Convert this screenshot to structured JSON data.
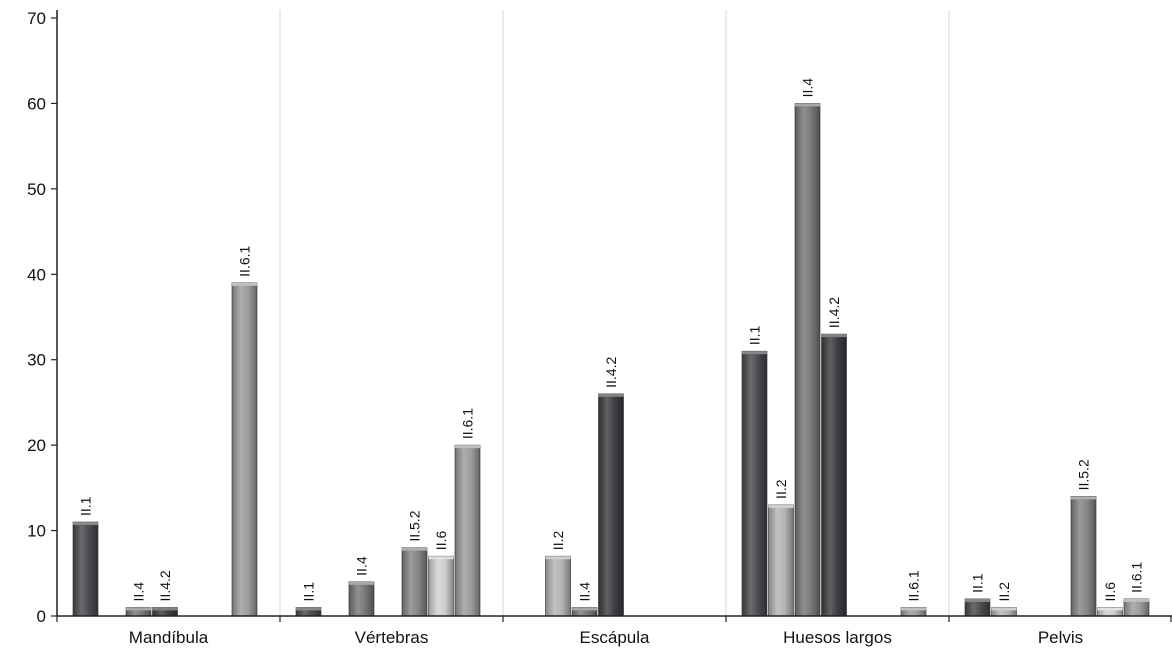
{
  "chart_data": {
    "type": "bar",
    "title": "",
    "xlabel": "",
    "ylabel": "",
    "ylim": [
      0,
      70
    ],
    "yticks": [
      0,
      10,
      20,
      30,
      40,
      50,
      60,
      70
    ],
    "grid": "vertical category separators",
    "legend": "none",
    "categories": [
      "Mandíbula",
      "Vértebras",
      "Escápula",
      "Huesos largos",
      "Pelvis"
    ],
    "series_order": [
      "II.1",
      "II.2",
      "II.4",
      "II.4.2",
      "II.5.2",
      "II.6",
      "II.6.1"
    ],
    "series_colors": {
      "II.1": "#4a4a4e",
      "II.2": "#b4b4b4",
      "II.4": "#78787a",
      "II.4.2": "#3e3e42",
      "II.5.2": "#858587",
      "II.6": "#cfcfcf",
      "II.6.1": "#9c9c9c"
    },
    "groups": [
      {
        "category": "Mandíbula",
        "bars": [
          {
            "series": "II.1",
            "value": 11,
            "label": "II.1"
          },
          {
            "series": "II.4",
            "value": 1,
            "label": "II.4"
          },
          {
            "series": "II.4.2",
            "value": 1,
            "label": "II.4.2"
          },
          {
            "series": "II.6.1",
            "value": 39,
            "label": "II.6.1"
          }
        ]
      },
      {
        "category": "Vértebras",
        "bars": [
          {
            "series": "II.1",
            "value": 1,
            "label": "II.1"
          },
          {
            "series": "II.4",
            "value": 4,
            "label": "II.4"
          },
          {
            "series": "II.5.2",
            "value": 8,
            "label": "II.5.2"
          },
          {
            "series": "II.6",
            "value": 7,
            "label": "II.6"
          },
          {
            "series": "II.6.1",
            "value": 20,
            "label": "II.6.1"
          }
        ]
      },
      {
        "category": "Escápula",
        "bars": [
          {
            "series": "II.2",
            "value": 7,
            "label": "II.2"
          },
          {
            "series": "II.4",
            "value": 1,
            "label": "II.4"
          },
          {
            "series": "II.4.2",
            "value": 26,
            "label": "II.4.2"
          }
        ]
      },
      {
        "category": "Huesos largos",
        "bars": [
          {
            "series": "II.1",
            "value": 31,
            "label": "II.1"
          },
          {
            "series": "II.2",
            "value": 13,
            "label": "II.2"
          },
          {
            "series": "II.4",
            "value": 60,
            "label": "II.4"
          },
          {
            "series": "II.4.2",
            "value": 33,
            "label": "II.4.2"
          },
          {
            "series": "II.6.1",
            "value": 1,
            "label": "II.6.1"
          }
        ]
      },
      {
        "category": "Pelvis",
        "bars": [
          {
            "series": "II.1",
            "value": 2,
            "label": "II.1"
          },
          {
            "series": "II.2",
            "value": 1,
            "label": "II.2"
          },
          {
            "series": "II.5.2",
            "value": 14,
            "label": "II.5.2"
          },
          {
            "series": "II.6",
            "value": 1,
            "label": "II.6"
          },
          {
            "series": "II.6.1",
            "value": 2,
            "label": "II.6.1"
          }
        ]
      }
    ]
  }
}
